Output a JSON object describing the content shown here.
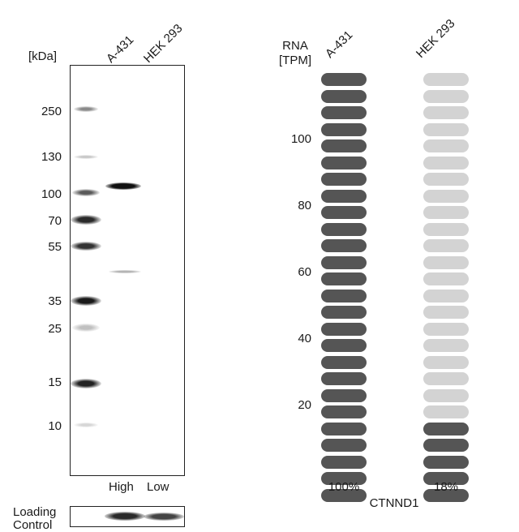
{
  "western_blot": {
    "unit_label": "[kDa]",
    "lanes": [
      "A-431",
      "HEK 293"
    ],
    "markers": [
      "250",
      "130",
      "100",
      "70",
      "55",
      "35",
      "25",
      "15",
      "10"
    ],
    "expression_labels": [
      "High",
      "Low"
    ],
    "loading_control_label": "Loading\nControl"
  },
  "rna": {
    "header": "RNA\n[TPM]",
    "cell_lines": [
      "A-431",
      "HEK 293"
    ],
    "tick_labels": [
      "100",
      "80",
      "60",
      "40",
      "20"
    ],
    "bars_total": 26,
    "filled_counts": [
      26,
      5
    ],
    "percentages": [
      "100%",
      "18%"
    ],
    "gene": "CTNND1",
    "colors": {
      "filled": "#555555",
      "empty": "#d3d3d3"
    }
  }
}
